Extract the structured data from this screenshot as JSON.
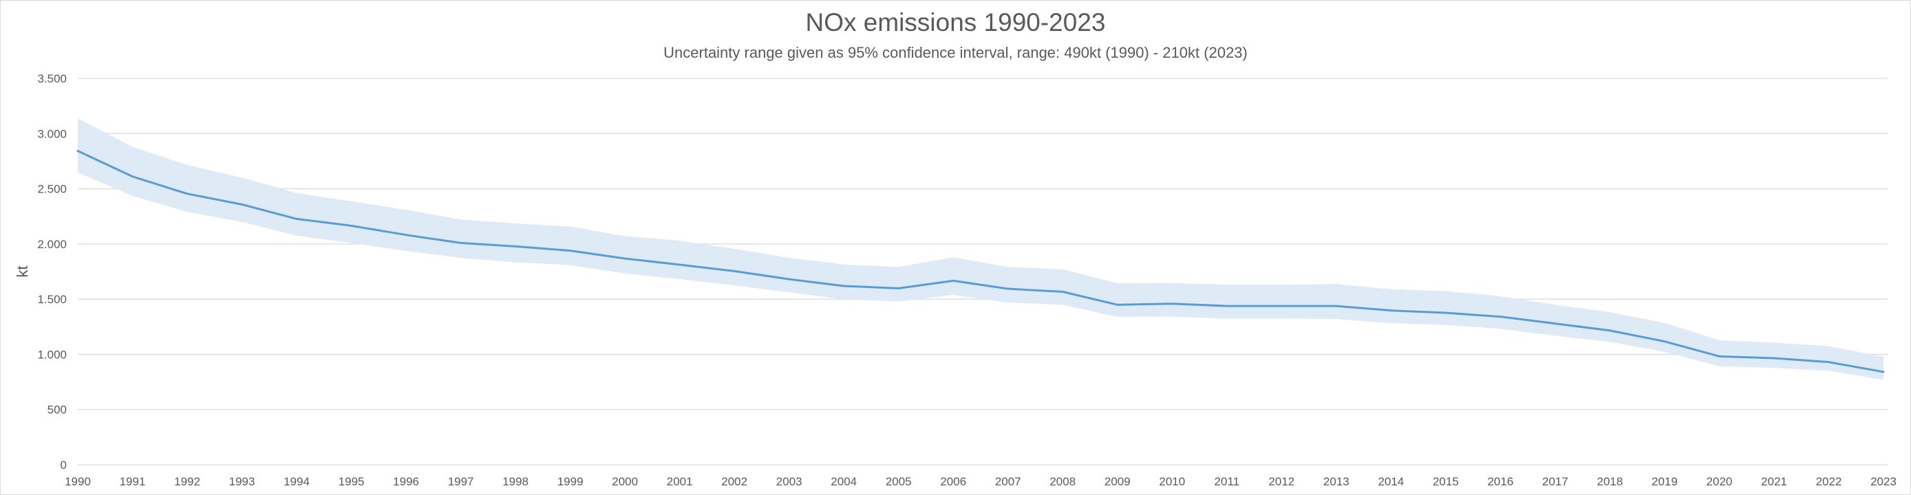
{
  "chart_data": {
    "type": "line",
    "title": "NOx emissions 1990-2023",
    "subtitle": "Uncertainty range given as 95% confidence interval, range: 490kt (1990) - 210kt (2023)",
    "xlabel": "",
    "ylabel": "kt",
    "ylim": [
      0,
      3500
    ],
    "yticks": [
      0,
      500,
      1000,
      1500,
      2000,
      2500,
      3000,
      3500
    ],
    "ytick_labels": [
      "0",
      "500",
      "1.000",
      "1.500",
      "2.000",
      "2.500",
      "3.000",
      "3.500"
    ],
    "grid": true,
    "legend": "none",
    "x": [
      1990,
      1991,
      1992,
      1993,
      1994,
      1995,
      1996,
      1997,
      1998,
      1999,
      2000,
      2001,
      2002,
      2003,
      2004,
      2005,
      2006,
      2007,
      2008,
      2009,
      2010,
      2011,
      2012,
      2013,
      2014,
      2015,
      2016,
      2017,
      2018,
      2019,
      2020,
      2021,
      2022,
      2023
    ],
    "series": [
      {
        "name": "NOx emissions",
        "type": "line",
        "color": "#5B9BD5",
        "values": [
          2843,
          2611,
          2455,
          2358,
          2227,
          2165,
          2082,
          2009,
          1978,
          1939,
          1868,
          1812,
          1754,
          1681,
          1619,
          1598,
          1667,
          1594,
          1567,
          1449,
          1459,
          1438,
          1438,
          1438,
          1397,
          1376,
          1341,
          1279,
          1216,
          1117,
          982,
          965,
          930,
          841
        ]
      },
      {
        "name": "Upper bound (95% CI)",
        "type": "band-upper",
        "values": [
          3138,
          2880,
          2715,
          2601,
          2461,
          2387,
          2310,
          2221,
          2186,
          2157,
          2071,
          2030,
          1957,
          1874,
          1815,
          1792,
          1879,
          1792,
          1770,
          1644,
          1646,
          1631,
          1631,
          1636,
          1590,
          1573,
          1527,
          1449,
          1382,
          1285,
          1127,
          1106,
          1075,
          978
        ]
      },
      {
        "name": "Lower bound (95% CI)",
        "type": "band-lower",
        "values": [
          2648,
          2435,
          2291,
          2200,
          2075,
          2009,
          1937,
          1874,
          1833,
          1809,
          1733,
          1681,
          1625,
          1563,
          1497,
          1480,
          1538,
          1469,
          1449,
          1340,
          1341,
          1324,
          1324,
          1320,
          1283,
          1266,
          1231,
          1169,
          1113,
          1023,
          892,
          878,
          851,
          770
        ]
      }
    ],
    "band_color": "#DEEAF6"
  }
}
